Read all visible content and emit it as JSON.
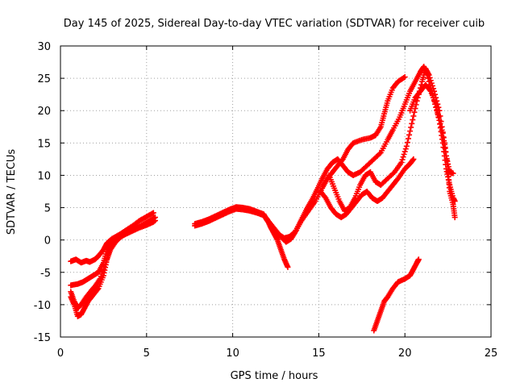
{
  "chart_data": {
    "type": "scatter",
    "title": "Day 145 of 2025, Sidereal Day-to-day VTEC variation (SDTVAR) for receiver cuib",
    "xlabel": "GPS time / hours",
    "ylabel": "SDTVAR / TECUs",
    "xlim": [
      0,
      25
    ],
    "ylim": [
      -15,
      30
    ],
    "xticks": [
      "0",
      "5",
      "10",
      "15",
      "20",
      "25"
    ],
    "yticks": [
      "-15",
      "-10",
      "-5",
      "0",
      "5",
      "10",
      "15",
      "20",
      "25",
      "30"
    ],
    "grid": true,
    "marker": "+",
    "color": "#ff0000",
    "series": [
      {
        "name": "arc-1",
        "points": [
          [
            0.6,
            -3.3
          ],
          [
            0.9,
            -3.0
          ],
          [
            1.2,
            -3.5
          ],
          [
            1.5,
            -3.2
          ],
          [
            1.7,
            -3.4
          ],
          [
            2.0,
            -3.0
          ],
          [
            2.2,
            -2.5
          ],
          [
            2.5,
            -1.5
          ],
          [
            2.7,
            -0.5
          ],
          [
            3.0,
            0.2
          ],
          [
            3.4,
            0.8
          ],
          [
            3.8,
            1.5
          ],
          [
            4.2,
            2.2
          ],
          [
            4.6,
            3.0
          ],
          [
            5.0,
            3.6
          ],
          [
            5.4,
            4.2
          ]
        ]
      },
      {
        "name": "arc-2",
        "points": [
          [
            0.6,
            -7.0
          ],
          [
            1.0,
            -6.8
          ],
          [
            1.3,
            -6.5
          ],
          [
            1.6,
            -6.0
          ],
          [
            1.9,
            -5.5
          ],
          [
            2.2,
            -5.0
          ],
          [
            2.5,
            -3.5
          ],
          [
            2.7,
            -1.5
          ],
          [
            3.0,
            -0.3
          ],
          [
            3.3,
            0.3
          ],
          [
            3.7,
            0.8
          ],
          [
            4.1,
            1.3
          ],
          [
            4.5,
            1.8
          ],
          [
            5.0,
            2.3
          ],
          [
            5.4,
            2.8
          ]
        ]
      },
      {
        "name": "arc-3",
        "points": [
          [
            0.6,
            -8.8
          ],
          [
            0.8,
            -10.0
          ],
          [
            1.0,
            -11.8
          ],
          [
            1.2,
            -11.5
          ],
          [
            1.4,
            -10.5
          ],
          [
            1.6,
            -9.5
          ],
          [
            1.9,
            -8.5
          ],
          [
            2.2,
            -7.5
          ],
          [
            2.5,
            -5.5
          ],
          [
            2.7,
            -3.0
          ],
          [
            2.9,
            -1.5
          ],
          [
            3.2,
            -0.3
          ],
          [
            3.5,
            0.5
          ],
          [
            3.9,
            1.2
          ],
          [
            4.3,
            1.8
          ],
          [
            4.8,
            2.4
          ],
          [
            5.2,
            3.0
          ],
          [
            5.5,
            3.5
          ]
        ]
      },
      {
        "name": "arc-4",
        "points": [
          [
            0.6,
            -8.0
          ],
          [
            0.8,
            -9.5
          ],
          [
            1.0,
            -10.5
          ],
          [
            1.2,
            -10.0
          ],
          [
            1.5,
            -8.8
          ],
          [
            1.8,
            -7.8
          ],
          [
            2.0,
            -7.2
          ],
          [
            2.3,
            -6.0
          ],
          [
            2.6,
            -3.8
          ],
          [
            2.8,
            -1.8
          ],
          [
            3.1,
            -0.5
          ],
          [
            3.4,
            0.3
          ],
          [
            3.8,
            1.0
          ],
          [
            4.2,
            1.6
          ],
          [
            4.7,
            2.1
          ],
          [
            5.2,
            2.6
          ],
          [
            5.5,
            3.0
          ]
        ]
      },
      {
        "name": "arc-5",
        "points": [
          [
            7.8,
            2.2
          ],
          [
            8.2,
            2.5
          ],
          [
            8.6,
            2.9
          ],
          [
            9.0,
            3.4
          ],
          [
            9.4,
            3.9
          ],
          [
            9.8,
            4.4
          ],
          [
            10.2,
            4.8
          ],
          [
            10.6,
            4.7
          ],
          [
            11.0,
            4.5
          ],
          [
            11.4,
            4.2
          ],
          [
            11.8,
            3.8
          ],
          [
            12.0,
            3.2
          ],
          [
            12.2,
            2.0
          ],
          [
            12.4,
            1.0
          ],
          [
            12.6,
            0.0
          ],
          [
            12.8,
            -1.5
          ],
          [
            13.0,
            -3.0
          ],
          [
            13.2,
            -4.2
          ]
        ]
      },
      {
        "name": "arc-6",
        "points": [
          [
            7.8,
            2.5
          ],
          [
            8.2,
            2.8
          ],
          [
            8.6,
            3.2
          ],
          [
            9.0,
            3.7
          ],
          [
            9.4,
            4.2
          ],
          [
            9.8,
            4.7
          ],
          [
            10.2,
            5.1
          ],
          [
            10.6,
            5.0
          ],
          [
            11.0,
            4.8
          ],
          [
            11.4,
            4.4
          ],
          [
            11.8,
            4.0
          ],
          [
            12.0,
            3.0
          ],
          [
            12.3,
            2.0
          ],
          [
            12.6,
            1.0
          ],
          [
            13.0,
            0.3
          ],
          [
            13.3,
            0.5
          ],
          [
            13.6,
            1.2
          ],
          [
            14.0,
            3.0
          ],
          [
            14.4,
            4.5
          ],
          [
            14.8,
            6.0
          ],
          [
            15.2,
            8.0
          ],
          [
            15.5,
            9.5
          ],
          [
            15.8,
            10.5
          ],
          [
            16.1,
            11.5
          ],
          [
            16.4,
            12.5
          ],
          [
            16.7,
            14.0
          ],
          [
            17.0,
            15.0
          ],
          [
            17.5,
            15.5
          ],
          [
            18.0,
            15.8
          ],
          [
            18.3,
            16.2
          ],
          [
            18.6,
            17.5
          ],
          [
            18.8,
            19.5
          ],
          [
            19.0,
            21.5
          ],
          [
            19.3,
            23.5
          ],
          [
            19.6,
            24.5
          ],
          [
            20.0,
            25.2
          ]
        ]
      },
      {
        "name": "arc-7",
        "points": [
          [
            11.9,
            3.5
          ],
          [
            12.2,
            2.5
          ],
          [
            12.5,
            1.5
          ],
          [
            12.8,
            0.5
          ],
          [
            13.1,
            -0.3
          ],
          [
            13.4,
            0.2
          ],
          [
            13.7,
            1.5
          ],
          [
            14.0,
            3.2
          ],
          [
            14.3,
            4.8
          ],
          [
            14.6,
            6.2
          ],
          [
            14.9,
            7.8
          ],
          [
            15.2,
            9.5
          ],
          [
            15.5,
            11.0
          ],
          [
            15.8,
            12.0
          ],
          [
            16.1,
            12.5
          ],
          [
            16.4,
            11.5
          ],
          [
            16.7,
            10.5
          ],
          [
            17.0,
            10.0
          ],
          [
            17.4,
            10.5
          ],
          [
            17.8,
            11.5
          ],
          [
            18.2,
            12.5
          ],
          [
            18.6,
            13.5
          ],
          [
            19.0,
            15.5
          ],
          [
            19.3,
            17.0
          ],
          [
            19.7,
            19.0
          ],
          [
            20.0,
            21.0
          ],
          [
            20.3,
            23.0
          ],
          [
            20.6,
            24.5
          ],
          [
            20.9,
            26.0
          ],
          [
            21.1,
            26.8
          ],
          [
            21.3,
            25.5
          ],
          [
            21.6,
            22.5
          ],
          [
            21.9,
            19.5
          ],
          [
            22.2,
            16.5
          ],
          [
            22.4,
            13.0
          ],
          [
            22.6,
            10.5
          ],
          [
            22.8,
            10.3
          ]
        ]
      },
      {
        "name": "arc-8",
        "points": [
          [
            15.1,
            7.5
          ],
          [
            15.4,
            6.5
          ],
          [
            15.7,
            5.0
          ],
          [
            16.0,
            4.0
          ],
          [
            16.3,
            3.5
          ],
          [
            16.6,
            4.0
          ],
          [
            16.9,
            5.0
          ],
          [
            17.2,
            6.0
          ],
          [
            17.5,
            7.0
          ],
          [
            17.8,
            7.5
          ],
          [
            18.1,
            6.5
          ],
          [
            18.4,
            6.0
          ],
          [
            18.7,
            6.5
          ],
          [
            19.0,
            7.5
          ],
          [
            19.3,
            8.5
          ],
          [
            19.6,
            9.5
          ],
          [
            20.0,
            11.0
          ],
          [
            20.3,
            11.8
          ],
          [
            20.5,
            12.5
          ]
        ]
      },
      {
        "name": "arc-9",
        "points": [
          [
            15.6,
            10.0
          ],
          [
            15.9,
            8.0
          ],
          [
            16.2,
            6.0
          ],
          [
            16.5,
            4.5
          ],
          [
            16.8,
            5.0
          ],
          [
            17.1,
            6.5
          ],
          [
            17.4,
            8.5
          ],
          [
            17.7,
            10.0
          ],
          [
            18.0,
            10.5
          ],
          [
            18.3,
            9.0
          ],
          [
            18.6,
            8.5
          ],
          [
            19.0,
            9.5
          ],
          [
            19.4,
            10.5
          ],
          [
            19.8,
            12.0
          ],
          [
            20.1,
            14.5
          ],
          [
            20.4,
            18.0
          ],
          [
            20.7,
            21.5
          ],
          [
            21.0,
            24.5
          ],
          [
            21.2,
            26.5
          ],
          [
            21.4,
            25.5
          ],
          [
            21.7,
            23.0
          ],
          [
            22.0,
            20.0
          ],
          [
            22.3,
            15.0
          ],
          [
            22.5,
            11.0
          ],
          [
            22.6,
            7.5
          ],
          [
            22.8,
            5.5
          ],
          [
            22.9,
            3.5
          ]
        ]
      },
      {
        "name": "arc-10",
        "points": [
          [
            20.3,
            20.0
          ],
          [
            20.6,
            22.0
          ],
          [
            20.9,
            23.0
          ],
          [
            21.2,
            24.0
          ],
          [
            21.5,
            23.0
          ],
          [
            21.8,
            21.0
          ],
          [
            22.0,
            18.5
          ],
          [
            22.2,
            15.0
          ],
          [
            22.4,
            11.0
          ],
          [
            22.6,
            8.5
          ],
          [
            22.8,
            6.5
          ],
          [
            22.9,
            6.0
          ]
        ]
      },
      {
        "name": "arc-11",
        "points": [
          [
            18.2,
            -14.0
          ],
          [
            18.4,
            -12.5
          ],
          [
            18.6,
            -11.0
          ],
          [
            18.8,
            -9.5
          ],
          [
            19.0,
            -8.8
          ],
          [
            19.3,
            -7.5
          ],
          [
            19.6,
            -6.5
          ],
          [
            20.0,
            -6.0
          ],
          [
            20.3,
            -5.5
          ],
          [
            20.5,
            -4.5
          ],
          [
            20.7,
            -3.5
          ],
          [
            20.8,
            -3.0
          ]
        ]
      }
    ]
  }
}
